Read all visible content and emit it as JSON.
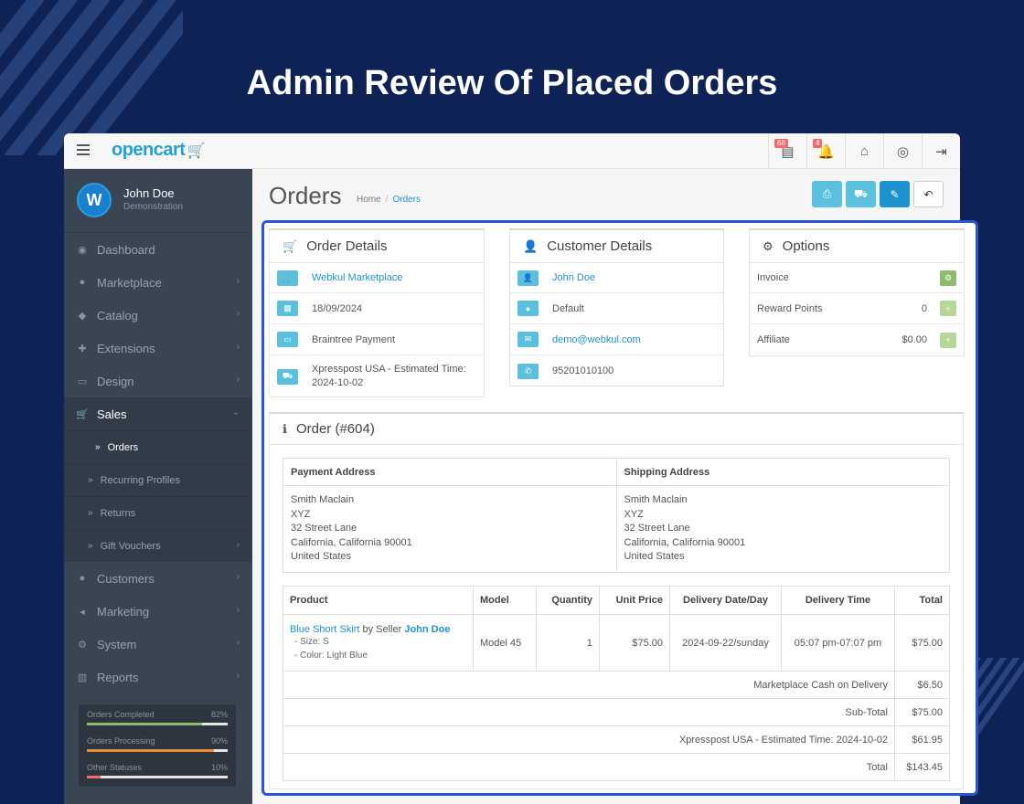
{
  "hero_title": "Admin Review Of Placed Orders",
  "topbar": {
    "logo": "opencart",
    "badge_store": "68",
    "badge_bell": "4"
  },
  "user": {
    "initial": "W",
    "name": "John Doe",
    "role": "Demonstration"
  },
  "nav": {
    "dashboard": "Dashboard",
    "marketplace": "Marketplace",
    "catalog": "Catalog",
    "extensions": "Extensions",
    "design": "Design",
    "sales": "Sales",
    "orders": "Orders",
    "recurring": "Recurring Profiles",
    "returns": "Returns",
    "vouchers": "Gift Vouchers",
    "customers": "Customers",
    "marketing": "Marketing",
    "system": "System",
    "reports": "Reports"
  },
  "stats": [
    {
      "label": "Orders Completed",
      "pct": "82%",
      "value": 82,
      "color": "#8fbb6c"
    },
    {
      "label": "Orders Processing",
      "pct": "90%",
      "value": 90,
      "color": "#f38733"
    },
    {
      "label": "Other Statuses",
      "pct": "10%",
      "value": 10,
      "color": "#f56b6b"
    }
  ],
  "page": {
    "title": "Orders",
    "crumb_home": "Home",
    "crumb_current": "Orders"
  },
  "order_details": {
    "title": "Order Details",
    "store": "Webkul Marketplace",
    "date": "18/09/2024",
    "payment": "Braintree Payment",
    "shipping_line1": "Xpresspost USA - Estimated Time:",
    "shipping_line2": "2024-10-02"
  },
  "customer_details": {
    "title": "Customer Details",
    "name": "John Doe",
    "group": "Default",
    "email": "demo@webkul.com",
    "phone": "95201010100"
  },
  "options": {
    "title": "Options",
    "invoice": "Invoice",
    "reward": "Reward Points",
    "reward_val": "0",
    "affiliate": "Affiliate",
    "affiliate_val": "$0.00"
  },
  "order": {
    "title": "Order (#604)",
    "payment_address_h": "Payment Address",
    "shipping_address_h": "Shipping Address",
    "payment_address": [
      "Smith Maclain",
      "XYZ",
      "32 Street Lane",
      "California, California 90001",
      "United States"
    ],
    "shipping_address": [
      "Smith Maclain",
      "XYZ",
      "32 Street Lane",
      "California, California 90001",
      "United States"
    ],
    "columns": [
      "Product",
      "Model",
      "Quantity",
      "Unit Price",
      "Delivery Date/Day",
      "Delivery Time",
      "Total"
    ],
    "product": {
      "name": "Blue Short Skirt",
      "by": "by Seller",
      "seller": "John Doe",
      "size": "- Size: S",
      "color": "- Color: Light Blue",
      "model": "Model 45",
      "qty": "1",
      "unit": "$75.00",
      "date": "2024-09-22/sunday",
      "time": "05:07 pm-07:07 pm",
      "total": "$75.00"
    },
    "totals": [
      {
        "label": "Marketplace Cash on Delivery",
        "value": "$6.50"
      },
      {
        "label": "Sub-Total",
        "value": "$75.00"
      },
      {
        "label": "Xpresspost USA - Estimated Time: 2024-10-02",
        "value": "$61.95"
      },
      {
        "label": "Total",
        "value": "$143.45"
      }
    ]
  }
}
